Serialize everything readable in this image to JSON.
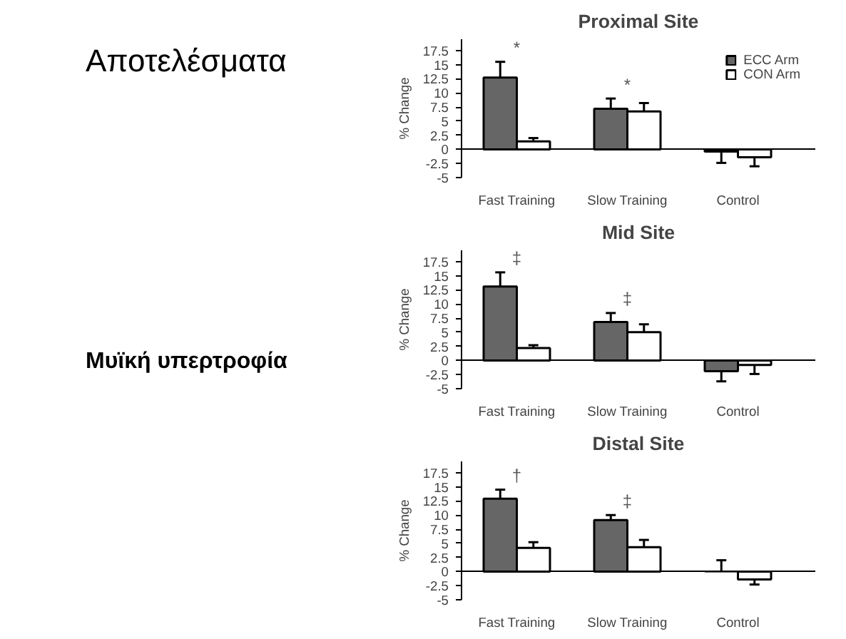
{
  "chart_data": [
    {
      "type": "other",
      "annotations": [
        "Αποτελέσματα",
        "Μυϊκή υπερτροφία"
      ]
    },
    {
      "type": "bar",
      "title": "Proximal Site",
      "ylabel": "% Change",
      "categories": [
        "Fast Training",
        "Slow Training",
        "Control"
      ],
      "series": [
        {
          "name": "ECC Arm",
          "color": "#666666",
          "values": [
            12.7,
            7.2,
            -0.4
          ],
          "errors": [
            [
              12.7,
              15.5
            ],
            [
              7.2,
              9
            ],
            [
              -2.4,
              -0.4
            ]
          ]
        },
        {
          "name": "CON Arm",
          "color": "#ffffff",
          "values": [
            1.4,
            6.7,
            -1.4
          ],
          "errors": [
            [
              1.4,
              2
            ],
            [
              6.7,
              8.2
            ],
            [
              -3,
              -1.4
            ]
          ]
        }
      ],
      "ylim": [
        -5,
        19.5
      ],
      "yticks": [
        -5,
        -2.5,
        0,
        2.5,
        5,
        7.5,
        10,
        12.5,
        15,
        17.5
      ],
      "legend": "top right",
      "annotations": [
        "*",
        "*"
      ]
    },
    {
      "type": "bar",
      "title": "Mid Site",
      "ylabel": "% Change",
      "categories": [
        "Fast Training",
        "Slow Training",
        "Control"
      ],
      "series": [
        {
          "color": "#666666",
          "values": [
            13.1,
            6.8,
            -1.9
          ],
          "errors": [
            [
              13.1,
              15.6
            ],
            [
              6.8,
              8.4
            ],
            [
              -3.7,
              -1.9
            ]
          ]
        },
        {
          "color": "#ffffff",
          "values": [
            2.2,
            5,
            -0.8
          ],
          "errors": [
            [
              2.2,
              2.7
            ],
            [
              5,
              6.4
            ],
            [
              -2.4,
              -0.8
            ]
          ]
        }
      ],
      "ylim": [
        -5,
        19.5
      ],
      "yticks": [
        -5,
        -2.5,
        0,
        2.5,
        5,
        7.5,
        10,
        12.5,
        15,
        17.5
      ],
      "annotations": [
        "‡",
        "‡"
      ]
    },
    {
      "type": "bar",
      "title": "Distal Site",
      "ylabel": "% Change",
      "categories": [
        "Fast Training",
        "Slow Training",
        "Control"
      ],
      "series": [
        {
          "color": "#666666",
          "values": [
            12.9,
            9.1,
            0
          ],
          "errors": [
            [
              12.9,
              14.5
            ],
            [
              9.1,
              10
            ],
            [
              0,
              2
            ]
          ]
        },
        {
          "color": "#ffffff",
          "values": [
            4.2,
            4.3,
            -1.4
          ],
          "errors": [
            [
              4.2,
              5.2
            ],
            [
              4.3,
              5.6
            ],
            [
              -2.3,
              -1.4
            ]
          ]
        }
      ],
      "ylim": [
        -5,
        19.5
      ],
      "yticks": [
        -5,
        -2.5,
        0,
        2.5,
        5,
        7.5,
        10,
        12.5,
        15,
        17.5
      ],
      "annotations": [
        "†",
        "‡"
      ]
    }
  ]
}
